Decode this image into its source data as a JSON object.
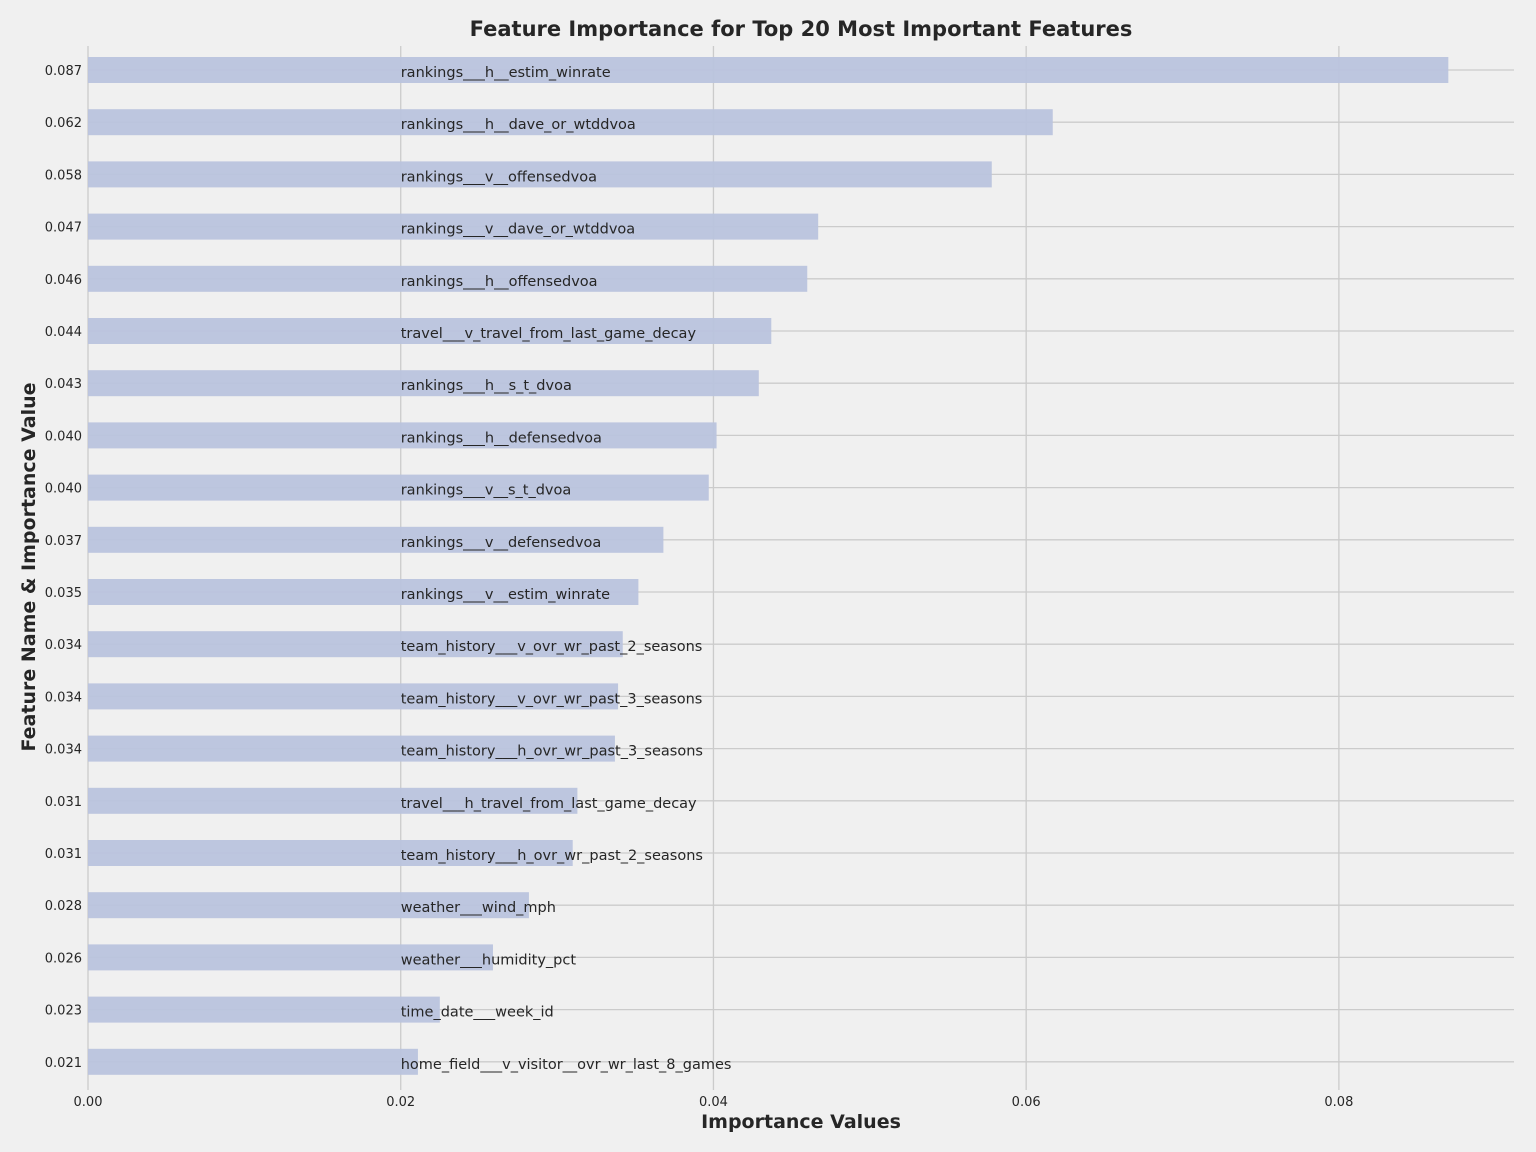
{
  "chart_data": {
    "type": "bar",
    "orientation": "horizontal",
    "title": "Feature Importance for Top 20 Most Important Features",
    "xlabel": "Importance Values",
    "ylabel": "Feature Name & Importance Value",
    "xlim": [
      0,
      0.0912
    ],
    "xticks": [
      "0.00",
      "0.02",
      "0.04",
      "0.06",
      "0.08"
    ],
    "grid": true,
    "bar_color": "#b9c3dd",
    "background": "#f0f0f0",
    "bars": [
      {
        "feature": "rankings___h__estim_winrate",
        "value": 0.087,
        "label": "0.087"
      },
      {
        "feature": "rankings___h__dave_or_wtddvoa",
        "value": 0.0617,
        "label": "0.062"
      },
      {
        "feature": "rankings___v__offensedvoa",
        "value": 0.0578,
        "label": "0.058"
      },
      {
        "feature": "rankings___v__dave_or_wtddvoa",
        "value": 0.0467,
        "label": "0.047"
      },
      {
        "feature": "rankings___h__offensedvoa",
        "value": 0.046,
        "label": "0.046"
      },
      {
        "feature": "travel___v_travel_from_last_game_decay",
        "value": 0.0437,
        "label": "0.044"
      },
      {
        "feature": "rankings___h__s_t_dvoa",
        "value": 0.0429,
        "label": "0.043"
      },
      {
        "feature": "rankings___h__defensedvoa",
        "value": 0.0402,
        "label": "0.040"
      },
      {
        "feature": "rankings___v__s_t_dvoa",
        "value": 0.0397,
        "label": "0.040"
      },
      {
        "feature": "rankings___v__defensedvoa",
        "value": 0.0368,
        "label": "0.037"
      },
      {
        "feature": "rankings___v__estim_winrate",
        "value": 0.0352,
        "label": "0.035"
      },
      {
        "feature": "team_history___v_ovr_wr_past_2_seasons",
        "value": 0.0342,
        "label": "0.034"
      },
      {
        "feature": "team_history___v_ovr_wr_past_3_seasons",
        "value": 0.0339,
        "label": "0.034"
      },
      {
        "feature": "team_history___h_ovr_wr_past_3_seasons",
        "value": 0.0337,
        "label": "0.034"
      },
      {
        "feature": "travel___h_travel_from_last_game_decay",
        "value": 0.0313,
        "label": "0.031"
      },
      {
        "feature": "team_history___h_ovr_wr_past_2_seasons",
        "value": 0.031,
        "label": "0.031"
      },
      {
        "feature": "weather___wind_mph",
        "value": 0.0282,
        "label": "0.028"
      },
      {
        "feature": "weather___humidity_pct",
        "value": 0.0259,
        "label": "0.026"
      },
      {
        "feature": "time_date___week_id",
        "value": 0.0225,
        "label": "0.023"
      },
      {
        "feature": "home_field___v_visitor__ovr_wr_last_8_games",
        "value": 0.0211,
        "label": "0.021"
      }
    ],
    "feature_label_x": 0.02
  }
}
